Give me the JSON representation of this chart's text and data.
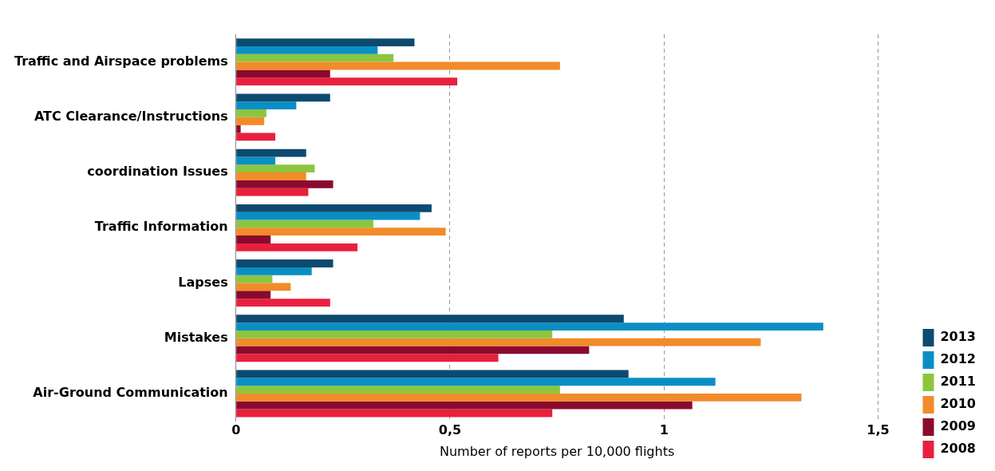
{
  "chart_data": {
    "type": "bar",
    "orientation": "horizontal",
    "xlabel": "Number of reports per 10,000 flights",
    "categories": [
      "Traffic and Airspace problems",
      "ATC Clearance/Instructions",
      "coordination Issues",
      "Traffic Information",
      "Lapses",
      "Mistakes",
      "Air-Ground Communication"
    ],
    "series": [
      {
        "name": "2013",
        "color": "#0d4a70",
        "values": [
          0.417,
          0.22,
          0.164,
          0.457,
          0.227,
          0.906,
          0.917
        ]
      },
      {
        "name": "2012",
        "color": "#0a8fc4",
        "values": [
          0.331,
          0.141,
          0.092,
          0.43,
          0.177,
          1.372,
          1.12
        ]
      },
      {
        "name": "2011",
        "color": "#8cc63f",
        "values": [
          0.368,
          0.071,
          0.184,
          0.321,
          0.085,
          0.739,
          0.757
        ]
      },
      {
        "name": "2010",
        "color": "#f28b2a",
        "values": [
          0.757,
          0.066,
          0.164,
          0.49,
          0.128,
          1.226,
          1.321
        ]
      },
      {
        "name": "2009",
        "color": "#8a0a2e",
        "values": [
          0.22,
          0.011,
          0.227,
          0.081,
          0.081,
          0.825,
          1.066
        ]
      },
      {
        "name": "2008",
        "color": "#e8203e",
        "values": [
          0.517,
          0.092,
          0.169,
          0.284,
          0.22,
          0.613,
          0.739
        ]
      }
    ],
    "xlim": [
      0,
      1.5
    ],
    "xticks": [
      0,
      {
        "value": 0.5,
        "label": "0,5"
      },
      1,
      {
        "value": 1.5,
        "label": "1,5"
      }
    ],
    "grid": "x",
    "legend": "bottom right"
  }
}
